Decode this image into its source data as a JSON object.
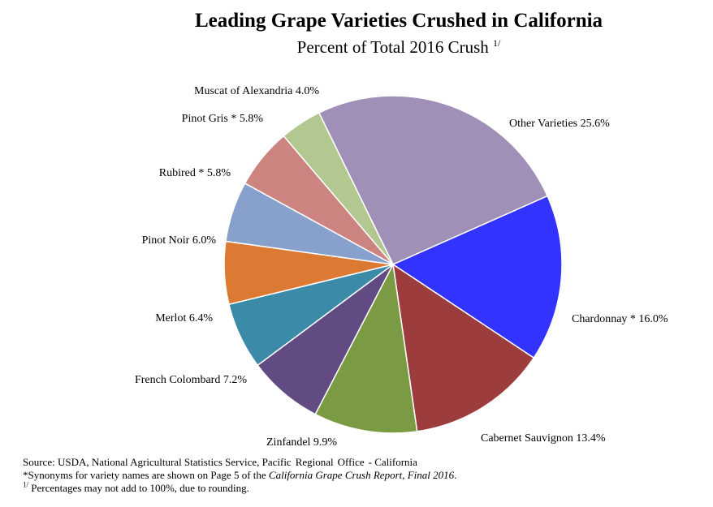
{
  "title": "Leading Grape Varieties Crushed in California",
  "subtitle": "Percent of Total 2016 Crush",
  "subtitle_superscript": "1/",
  "chart_data": {
    "type": "pie",
    "title": "Leading Grape Varieties Crushed in California",
    "subtitle": "Percent of Total 2016 Crush",
    "slices": [
      {
        "label": "Other Varieties",
        "value": 25.6,
        "display": "Other Varieties 25.6%",
        "color": "#a090b8"
      },
      {
        "label": "Chardonnay *",
        "value": 16.0,
        "display": "Chardonnay *  16.0%",
        "color": "#3333ff"
      },
      {
        "label": "Cabernet Sauvignon",
        "value": 13.4,
        "display": "Cabernet Sauvignon  13.4%",
        "color": "#9c3c3c"
      },
      {
        "label": "Zinfandel",
        "value": 9.9,
        "display": "Zinfandel  9.9%",
        "color": "#7a9a44"
      },
      {
        "label": "French Colombard",
        "value": 7.2,
        "display": "French Colombard  7.2%",
        "color": "#624a82"
      },
      {
        "label": "Merlot",
        "value": 6.4,
        "display": "Merlot  6.4%",
        "color": "#3a8aa8"
      },
      {
        "label": "Pinot Noir",
        "value": 6.0,
        "display": "Pinot Noir  6.0%",
        "color": "#dc7a34"
      },
      {
        "label": "Rubired *",
        "value": 5.8,
        "display": "Rubired *  5.8%",
        "color": "#88a0cc"
      },
      {
        "label": "Pinot Gris *",
        "value": 5.8,
        "display": "Pinot Gris *  5.8%",
        "color": "#cc8480"
      },
      {
        "label": "Muscat of Alexandria",
        "value": 4.0,
        "display": "Muscat of Alexandria  4.0%",
        "color": "#b2c890"
      }
    ]
  },
  "footnotes": {
    "source_prefix": "Source: USDA, National Agricultural Statistics Service, Pacific",
    "source_office": "Regional",
    "source_office2": "Office",
    "source_suffix": "- California",
    "synonyms_prefix": "*Synonyms for variety names are shown on Page 5 of the ",
    "synonyms_report": "California Grape Crush Report, Final 2016",
    "synonyms_suffix": ".",
    "rounding_superscript": "1/",
    "rounding_text": " Percentages may not add to 100%, due to rounding."
  }
}
